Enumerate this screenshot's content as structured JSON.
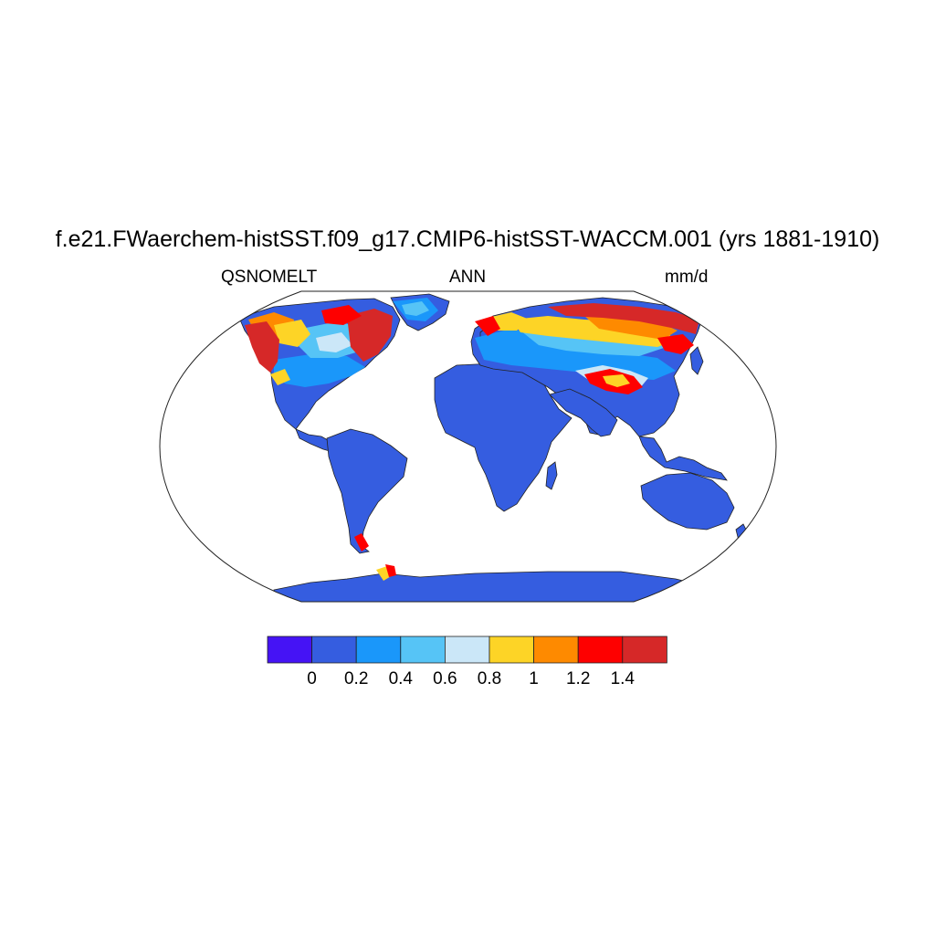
{
  "title": "f.e21.FWaerchem-histSST.f09_g17.CMIP6-histSST-WACCM.001 (yrs 1881-1910)",
  "left_label": "QSNOMELT",
  "center_label": "ANN",
  "right_label": "mm/d",
  "colorbar": {
    "colors": [
      "#4513f5",
      "#355de0",
      "#1a97fa",
      "#56c4f6",
      "#cbe7f8",
      "#fdd426",
      "#fe8a00",
      "#fe0000",
      "#d62828"
    ],
    "ticks": [
      "0",
      "0.2",
      "0.4",
      "0.6",
      "0.8",
      "1",
      "1.2",
      "1.4"
    ]
  },
  "colors": {
    "land": "#355de0",
    "ocean": "#ffffff",
    "coast": "#222222"
  }
}
